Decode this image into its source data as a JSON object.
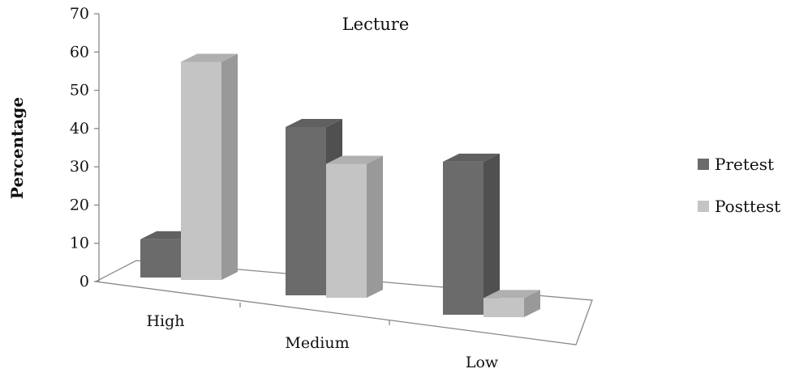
{
  "chart_data": {
    "type": "bar",
    "title": "Lecture",
    "xlabel": "",
    "ylabel": "Percentage",
    "categories": [
      "High",
      "Medium",
      "Low"
    ],
    "series": [
      {
        "name": "Pretest",
        "values": [
          10,
          44,
          40
        ],
        "color": "#6b6b6b"
      },
      {
        "name": "Posttest",
        "values": [
          57,
          35,
          5
        ],
        "color": "#c4c4c4"
      }
    ],
    "yticks": [
      "0",
      "10",
      "20",
      "30",
      "40",
      "50",
      "60",
      "70"
    ],
    "ylim": [
      0,
      70
    ],
    "grid": false,
    "legend_position": "right",
    "style": "3d-clustered-column"
  }
}
